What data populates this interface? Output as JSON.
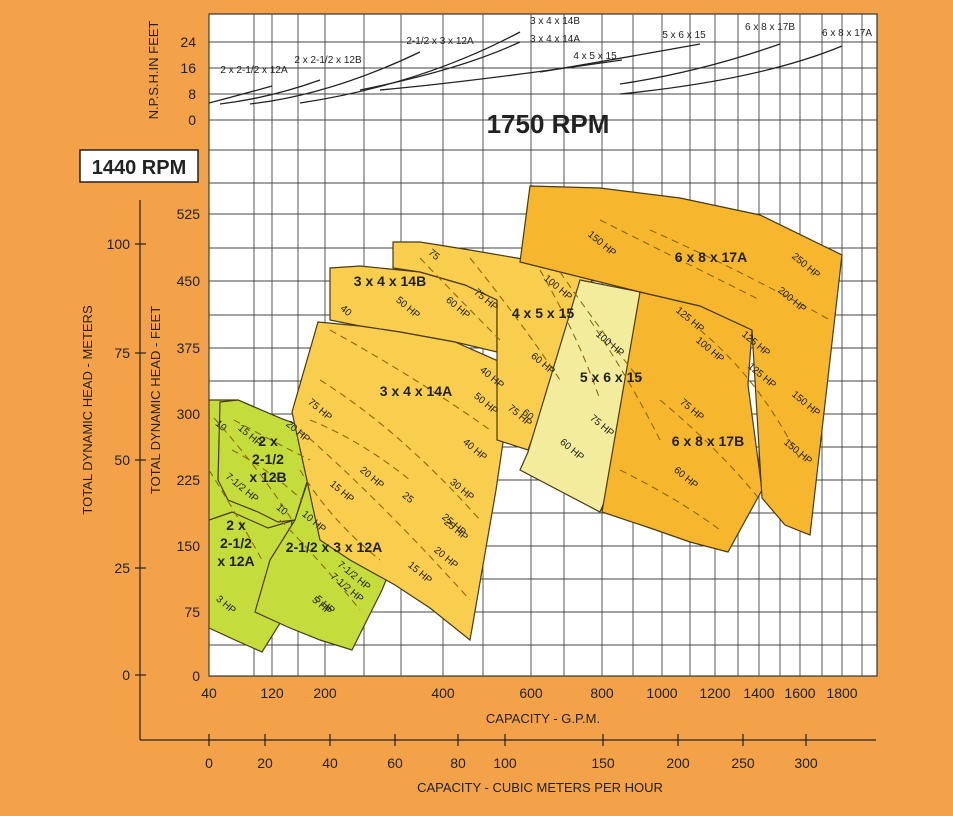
{
  "chart_data": {
    "type": "area",
    "rpm_main": "1750 RPM",
    "rpm_alt": "1440 RPM",
    "npsh_axis": {
      "label": "N.P.S.H.IN FEET",
      "ticks": [
        "24",
        "16",
        "8",
        "0"
      ]
    },
    "head_feet_axis": {
      "label": "TOTAL DYNAMIC HEAD - FEET",
      "ticks": [
        "525",
        "450",
        "375",
        "300",
        "225",
        "150",
        "75",
        "0"
      ]
    },
    "head_meters_axis": {
      "label": "TOTAL DYNAMIC HEAD - METERS",
      "ticks": [
        "100",
        "75",
        "50",
        "25",
        "0"
      ]
    },
    "capacity_gpm_axis": {
      "label": "CAPACITY - G.P.M.",
      "scale": "log",
      "ticks": [
        "40",
        "120",
        "200",
        "400",
        "600",
        "800",
        "1000",
        "1200",
        "1400",
        "1600",
        "1800"
      ]
    },
    "capacity_m3h_axis": {
      "label": "CAPACITY - CUBIC METERS PER HOUR",
      "ticks": [
        "0",
        "20",
        "40",
        "60",
        "80",
        "100",
        "150",
        "200",
        "250",
        "300"
      ]
    },
    "npsh_curve_labels": [
      "2 x 2-1/2 x 12A",
      "2 x 2-1/2 x 12B",
      "2-1/2 x 3 x 12A",
      "3 x 4 x 14B",
      "3 x 4 x 14A",
      "4 x 5 x 15",
      "5 x 6 x 15",
      "6 x 8 x 17B",
      "6 x 8 x 17A"
    ],
    "pump_regions": [
      {
        "model": "2 x\n2-1/2\nx 12A",
        "hp_labels": [
          "3 HP",
          "5 HP",
          "7-1/2 HP"
        ],
        "color": "#c5dd3c"
      },
      {
        "model": "2 x\n2-1/2\nx 12B",
        "hp_labels": [
          "10",
          "15 HP",
          "7-1/2 HP",
          "20 HP",
          "10"
        ],
        "color": "#c5dd3c"
      },
      {
        "model": "2-1/2 x 3 x 12A",
        "hp_labels": [
          "10 HP",
          "15 HP",
          "20 HP",
          "7-1/2 HP",
          "5 HP",
          "25"
        ],
        "color": "#c5dd3c"
      },
      {
        "model": "3 x 4 x 14B",
        "hp_labels": [
          "50 HP",
          "40",
          "40 HP"
        ],
        "color": "#f9cd4e"
      },
      {
        "model": "3 x 4 x 14A",
        "hp_labels": [
          "75 HP",
          "60 HP",
          "50 HP",
          "40 HP",
          "30 HP",
          "25 HP",
          "20 HP",
          "15 HP",
          "25 HP"
        ],
        "color": "#f9cd4e"
      },
      {
        "model": "4 x 5 x 15",
        "hp_labels": [
          "75",
          "75 HP",
          "60 HP",
          "100 HP",
          "75 HP",
          "60"
        ],
        "color": "#f9cd4e"
      },
      {
        "model": "5 x 6 x 15",
        "hp_labels": [
          "100 HP",
          "75 HP",
          "60 HP"
        ],
        "color": "#f3ec9c"
      },
      {
        "model": "6 x 8 x 17B",
        "hp_labels": [
          "125 HP",
          "100 HP",
          "75 HP",
          "60 HP"
        ],
        "color": "#f6b62e"
      },
      {
        "model": "6 x 8 x 17A",
        "hp_labels": [
          "150 HP",
          "250 HP",
          "200 HP",
          "125 HP",
          "150 HP",
          "150 HP",
          "125 HP"
        ],
        "color": "#f6b62e"
      }
    ],
    "grid": true
  }
}
